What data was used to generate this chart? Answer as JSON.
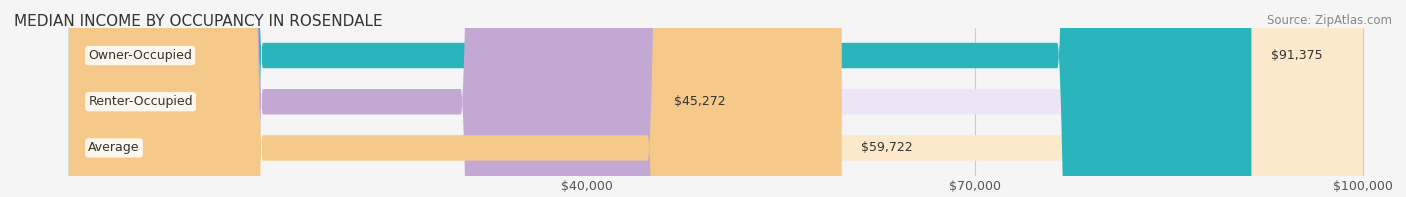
{
  "title": "MEDIAN INCOME BY OCCUPANCY IN ROSENDALE",
  "source": "Source: ZipAtlas.com",
  "categories": [
    "Owner-Occupied",
    "Renter-Occupied",
    "Average"
  ],
  "values": [
    91375,
    45272,
    59722
  ],
  "bar_colors": [
    "#2ab5bc",
    "#c4a8d4",
    "#f5c98a"
  ],
  "bar_background_colors": [
    "#d8f4f5",
    "#ede4f5",
    "#fce9cc"
  ],
  "value_labels": [
    "$91,375",
    "$45,272",
    "$59,722"
  ],
  "xlim": [
    0,
    100000
  ],
  "xticks": [
    40000,
    70000,
    100000
  ],
  "xtick_labels": [
    "$40,000",
    "$70,000",
    "$100,000"
  ],
  "background_color": "#f5f5f5",
  "bar_background_color": "#ebebeb",
  "title_fontsize": 11,
  "source_fontsize": 8.5,
  "label_fontsize": 9,
  "value_fontsize": 9,
  "tick_fontsize": 9
}
